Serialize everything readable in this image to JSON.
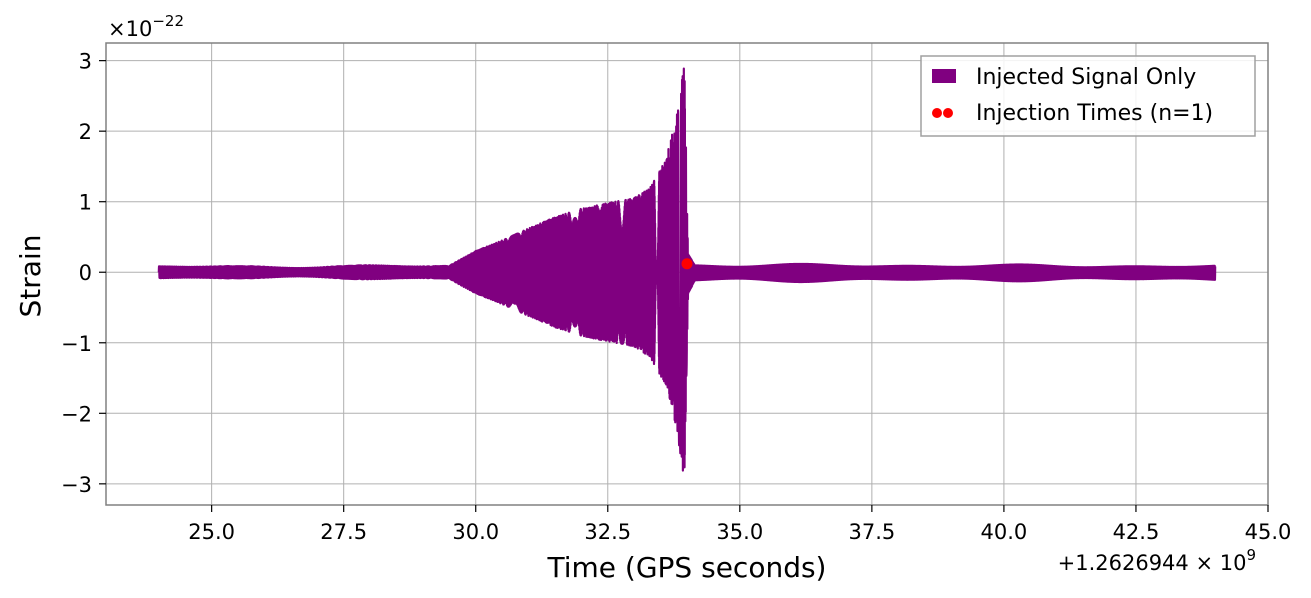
{
  "chart_data": {
    "type": "line",
    "xlabel": "Time (GPS seconds)",
    "ylabel": "Strain",
    "x_offset_label": "+1.2626944 × 10",
    "x_offset_exp": "9",
    "y_scale_label": "×10",
    "y_scale_exp": "−22",
    "xlim": [
      23.0,
      45.0
    ],
    "ylim": [
      -3.3,
      3.25
    ],
    "x_ticks": [
      25.0,
      27.5,
      30.0,
      32.5,
      35.0,
      37.5,
      40.0,
      42.5,
      45.0
    ],
    "x_tick_labels": [
      "25.0",
      "27.5",
      "30.0",
      "32.5",
      "35.0",
      "37.5",
      "40.0",
      "42.5",
      "45.0"
    ],
    "y_ticks": [
      -3,
      -2,
      -1,
      0,
      1,
      2,
      3
    ],
    "y_tick_labels": [
      "−3",
      "−2",
      "−1",
      "0",
      "1",
      "2",
      "3"
    ],
    "grid": true,
    "legend_position": "top-right",
    "series": [
      {
        "name": "Injected Signal Only",
        "color": "#800080",
        "kind": "chirp-envelope",
        "x_start": 24.0,
        "x_end": 44.0,
        "envelope": [
          [
            24.0,
            0.08
          ],
          [
            29.5,
            0.09
          ],
          [
            30.0,
            0.3
          ],
          [
            30.5,
            0.45
          ],
          [
            31.0,
            0.62
          ],
          [
            31.5,
            0.78
          ],
          [
            32.0,
            0.9
          ],
          [
            32.5,
            0.98
          ],
          [
            33.0,
            1.05
          ],
          [
            33.3,
            1.2
          ],
          [
            33.6,
            1.6
          ],
          [
            33.8,
            2.2
          ],
          [
            33.95,
            2.95
          ],
          [
            34.02,
            0.3
          ],
          [
            34.15,
            0.12
          ],
          [
            44.0,
            0.1
          ]
        ]
      },
      {
        "name": "Injection Times (n=1)",
        "color": "#ff0000",
        "kind": "points",
        "x": [
          34.0
        ],
        "y": [
          0.12
        ]
      }
    ]
  }
}
